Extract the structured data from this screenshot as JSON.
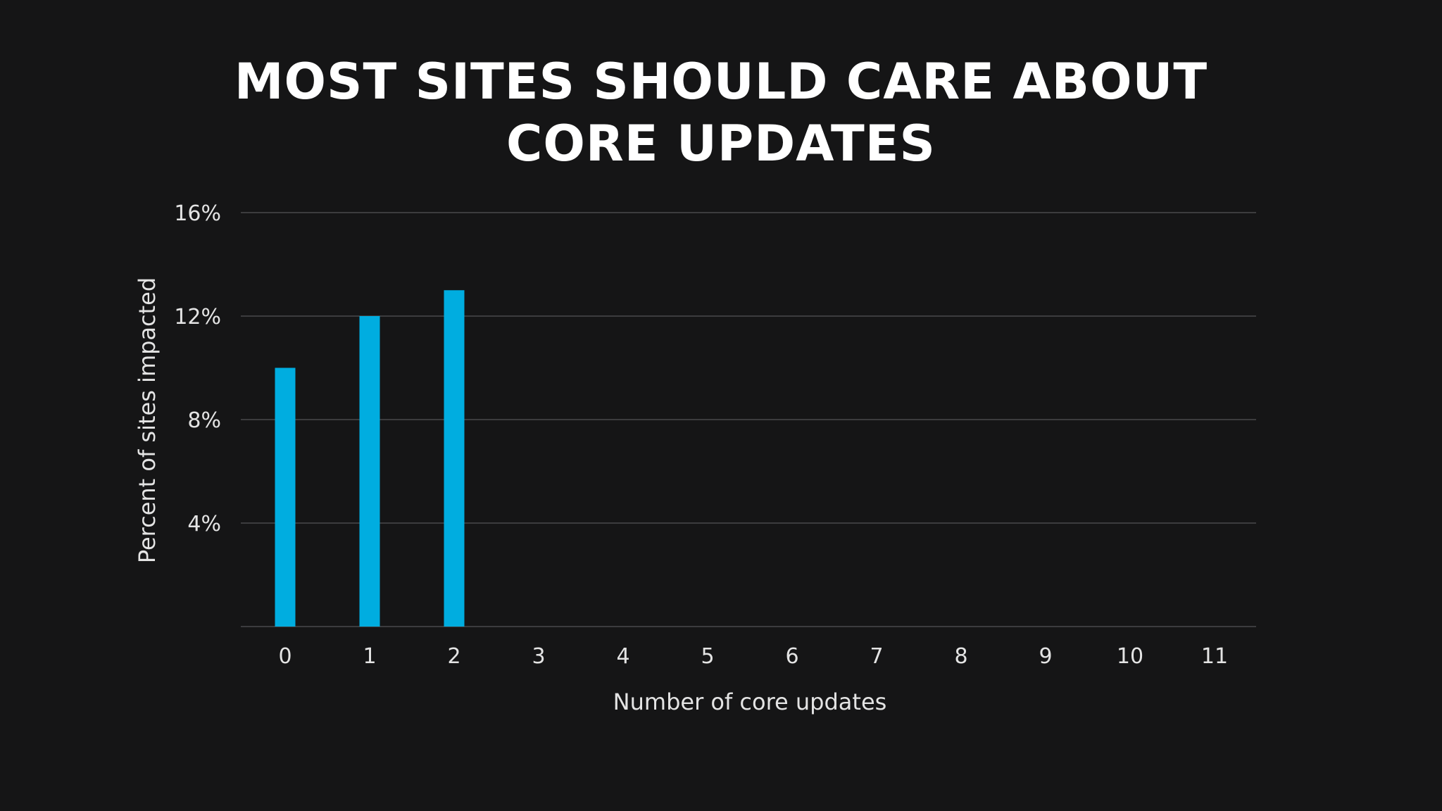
{
  "chart_data": {
    "type": "bar",
    "title": "MOST SITES SHOULD CARE ABOUT CORE UPDATES",
    "title_lines": [
      "MOST SITES SHOULD CARE ABOUT",
      "CORE UPDATES"
    ],
    "xlabel": "Number of core updates",
    "ylabel": "Percent of sites impacted",
    "categories": [
      "0",
      "1",
      "2",
      "3",
      "4",
      "5",
      "6",
      "7",
      "8",
      "9",
      "10",
      "11"
    ],
    "values": [
      10,
      12,
      13,
      null,
      null,
      null,
      null,
      null,
      null,
      null,
      null,
      null
    ],
    "ylim": [
      0,
      16
    ],
    "yticks": [
      4,
      8,
      12,
      16
    ],
    "ytick_labels": [
      "4%",
      "8%",
      "12%",
      "16%"
    ],
    "grid": true,
    "colors": {
      "bar": "#00ADE0",
      "background": "#151516",
      "grid": "#4a4a4c",
      "text": "#e4e4e4",
      "title": "#ffffff"
    }
  }
}
